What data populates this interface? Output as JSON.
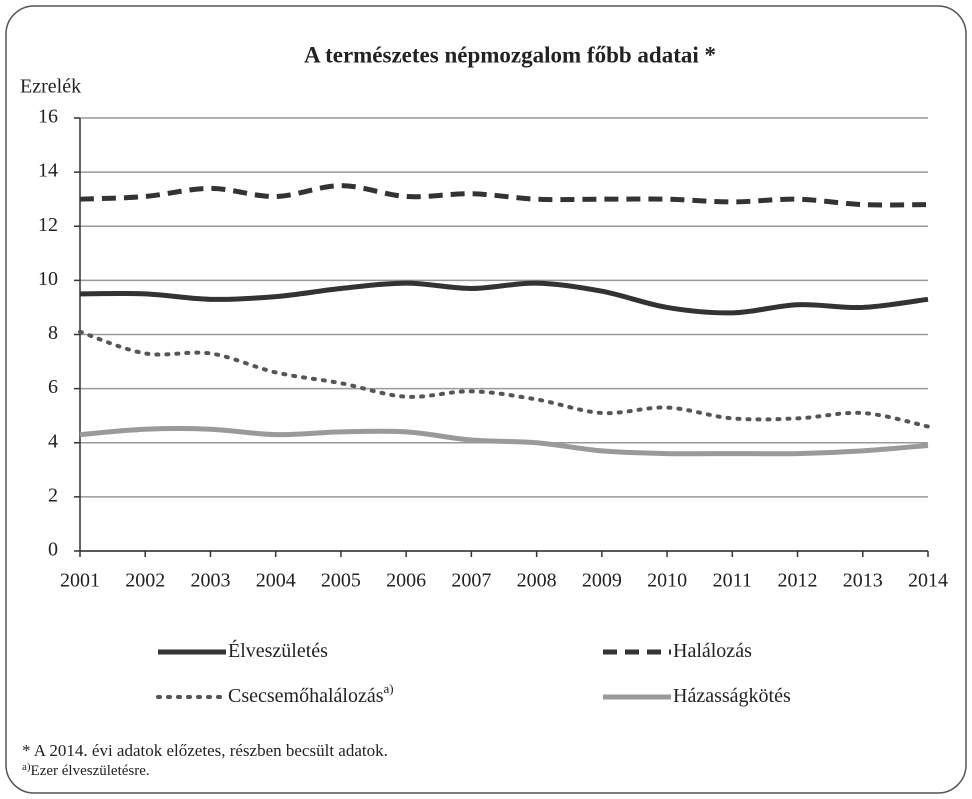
{
  "chart_data": {
    "type": "line",
    "title": "A természetes népmozgalom főbb adatai *",
    "y_label": "Ezrelék",
    "categories": [
      "2001",
      "2002",
      "2003",
      "2004",
      "2005",
      "2006",
      "2007",
      "2008",
      "2009",
      "2010",
      "2011",
      "2012",
      "2013",
      "2014"
    ],
    "series": [
      {
        "name": "Élveszületés",
        "color": "#333333",
        "style": "solid",
        "values": [
          9.5,
          9.5,
          9.3,
          9.4,
          9.7,
          9.9,
          9.7,
          9.9,
          9.6,
          9.0,
          8.8,
          9.1,
          9.0,
          9.3
        ]
      },
      {
        "name": "Halálozás",
        "color": "#333333",
        "style": "dashed",
        "values": [
          13.0,
          13.1,
          13.4,
          13.1,
          13.5,
          13.1,
          13.2,
          13.0,
          13.0,
          13.0,
          12.9,
          13.0,
          12.8,
          12.8
        ]
      },
      {
        "name": "Csecsemőhalálozás",
        "note": "a)",
        "color": "#555555",
        "style": "dotted",
        "values": [
          8.1,
          7.3,
          7.3,
          6.6,
          6.2,
          5.7,
          5.9,
          5.6,
          5.1,
          5.3,
          4.9,
          4.9,
          5.1,
          4.6
        ]
      },
      {
        "name": "Házasságkötés",
        "color": "#9a9a9a",
        "style": "solid",
        "values": [
          4.3,
          4.5,
          4.5,
          4.3,
          4.4,
          4.4,
          4.1,
          4.0,
          3.7,
          3.6,
          3.6,
          3.6,
          3.7,
          3.9
        ]
      }
    ],
    "ylim": [
      0,
      16
    ],
    "yticks": [
      0,
      2,
      4,
      6,
      8,
      10,
      12,
      14,
      16
    ],
    "grid": true,
    "footnotes": [
      {
        "text": "* A 2014. évi adatok előzetes, részben becsült adatok."
      },
      {
        "mark": "a)",
        "text": "Ezer élveszületésre."
      }
    ]
  }
}
